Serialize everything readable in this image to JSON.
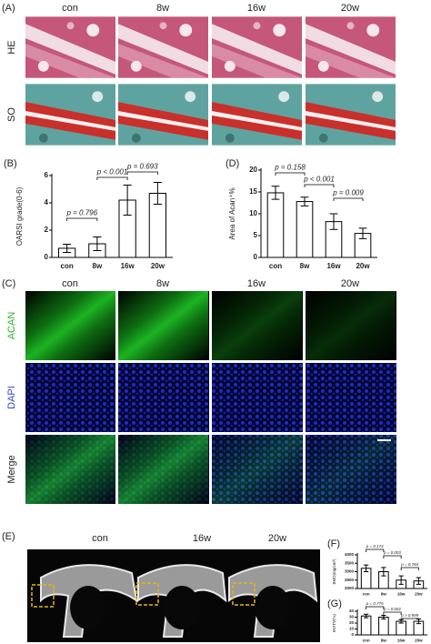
{
  "panel_labels": [
    "(A)",
    "(B)",
    "(C)",
    "(D)",
    "(E)",
    "(F)",
    "(G)"
  ],
  "he_so": {
    "columns": [
      "con",
      "8w",
      "16w",
      "20w"
    ],
    "rows": [
      "HE",
      "SO"
    ]
  },
  "fluorescence": {
    "columns": [
      "con",
      "8w",
      "16w",
      "20w"
    ],
    "rows": [
      "ACAN",
      "DAPI",
      "Merge"
    ]
  },
  "ct": {
    "columns": [
      "con",
      "16w",
      "20w"
    ]
  },
  "chart_data": [
    {
      "type": "bar",
      "ylabel": "OARSI grade(0-6)",
      "categories": [
        "con",
        "8w",
        "16w",
        "20w"
      ],
      "values": [
        0.67,
        1.0,
        4.2,
        4.7
      ],
      "errors": [
        0.3,
        0.5,
        1.1,
        0.8
      ],
      "color": "#ffffff",
      "ylim": [
        0,
        6
      ],
      "yticks": [
        0,
        2,
        4,
        6
      ],
      "annotations": [
        "p = 0.796",
        "p < 0.001",
        "p = 0.693"
      ]
    },
    {
      "type": "bar",
      "ylabel": "Area of Acan⁺%",
      "categories": [
        "con",
        "8w",
        "16w",
        "20w"
      ],
      "values": [
        14.8,
        12.8,
        8.2,
        5.5
      ],
      "errors": [
        1.5,
        1.0,
        1.8,
        1.2
      ],
      "color": "#ffffff",
      "ylim": [
        0,
        20
      ],
      "yticks": [
        0,
        5,
        10,
        15,
        20
      ],
      "annotations": [
        "p = 0.158",
        "p < 0.001",
        "p = 0.009"
      ]
    },
    {
      "type": "bar",
      "ylabel": "BMD(mg/cm³)",
      "categories": [
        "con",
        "8w",
        "16w",
        "20w"
      ],
      "values": [
        3200,
        3000,
        2500,
        2450
      ],
      "errors": [
        200,
        250,
        250,
        200
      ],
      "color": "#ffffff",
      "ylim": [
        2000,
        4000
      ],
      "yticks": [
        2000,
        2500,
        3000,
        3500,
        4000
      ],
      "annotations": [
        "p = 0.174",
        "p = 0.003",
        "p = 0.784"
      ]
    },
    {
      "type": "bar",
      "ylabel": "BV/TV(%)",
      "categories": [
        "con",
        "8w",
        "16w",
        "20w"
      ],
      "values": [
        32,
        30,
        23,
        23
      ],
      "errors": [
        3,
        3,
        3,
        4
      ],
      "color": "#ffffff",
      "ylim": [
        0,
        40
      ],
      "yticks": [
        0,
        10,
        20,
        30,
        40
      ],
      "annotations": [
        "p = 0.775",
        "p = 0.002",
        "p > 0.999"
      ]
    }
  ]
}
